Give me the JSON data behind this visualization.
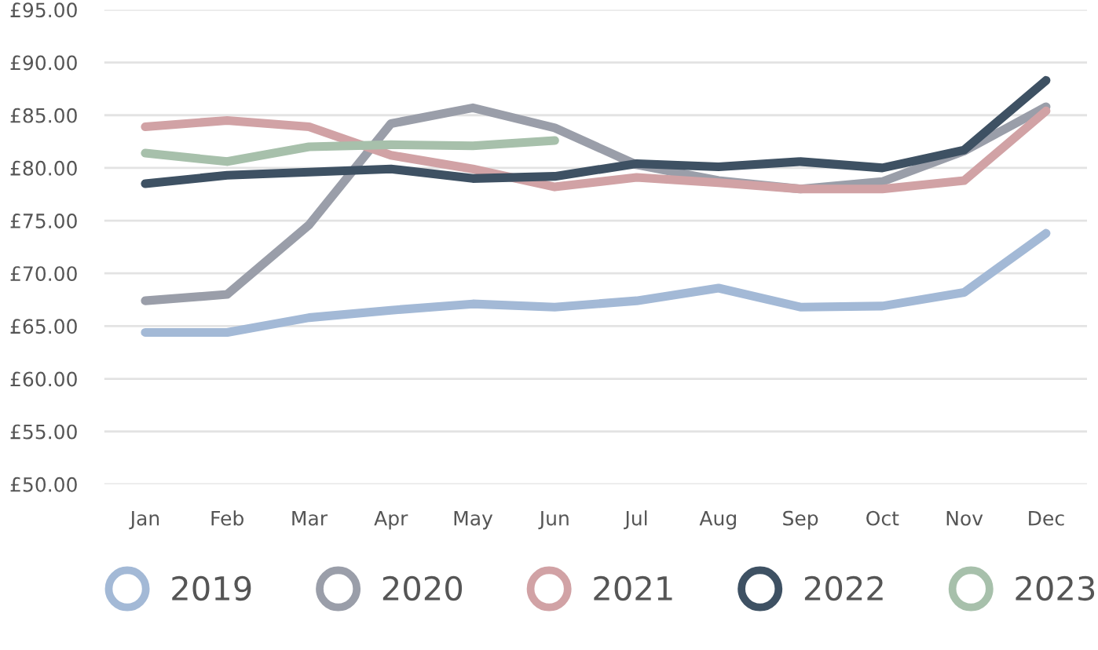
{
  "chart_data": {
    "type": "line",
    "categories": [
      "Jan",
      "Feb",
      "Mar",
      "Apr",
      "May",
      "Jun",
      "Jul",
      "Aug",
      "Sep",
      "Oct",
      "Nov",
      "Dec"
    ],
    "series": [
      {
        "name": "2019",
        "color": "#a3b9d6",
        "values": [
          64.4,
          64.4,
          65.8,
          66.5,
          67.1,
          66.8,
          67.4,
          68.6,
          66.8,
          66.9,
          68.2,
          73.8
        ]
      },
      {
        "name": "2020",
        "color": "#9a9ea9",
        "values": [
          67.4,
          68.0,
          74.6,
          84.2,
          85.7,
          83.8,
          80.3,
          78.8,
          78.0,
          78.7,
          81.6,
          85.8
        ]
      },
      {
        "name": "2021",
        "color": "#d1a2a5",
        "values": [
          83.9,
          84.5,
          83.9,
          81.2,
          79.9,
          78.2,
          79.1,
          78.6,
          78.0,
          78.0,
          78.8,
          85.4
        ]
      },
      {
        "name": "2022",
        "color": "#3e5163",
        "values": [
          78.5,
          79.3,
          79.6,
          79.9,
          79.0,
          79.2,
          80.4,
          80.1,
          80.6,
          80.0,
          81.7,
          88.3
        ]
      },
      {
        "name": "2023",
        "color": "#a7c0ab",
        "values": [
          81.4,
          80.6,
          82.0,
          82.2,
          82.1,
          82.6,
          null,
          null,
          null,
          null,
          null,
          null
        ]
      }
    ],
    "ylim": [
      50,
      95
    ],
    "yticks": [
      {
        "value": 50,
        "label": "£50.00"
      },
      {
        "value": 55,
        "label": "£55.00"
      },
      {
        "value": 60,
        "label": "£60.00"
      },
      {
        "value": 65,
        "label": "£65.00"
      },
      {
        "value": 70,
        "label": "£70.00"
      },
      {
        "value": 75,
        "label": "£75.00"
      },
      {
        "value": 80,
        "label": "£80.00"
      },
      {
        "value": 85,
        "label": "£85.00"
      },
      {
        "value": 90,
        "label": "£90.00"
      },
      {
        "value": 95,
        "label": "£95.00"
      }
    ],
    "grid": "y",
    "legend": "bottom",
    "marker": "none",
    "line_style": "solid"
  }
}
